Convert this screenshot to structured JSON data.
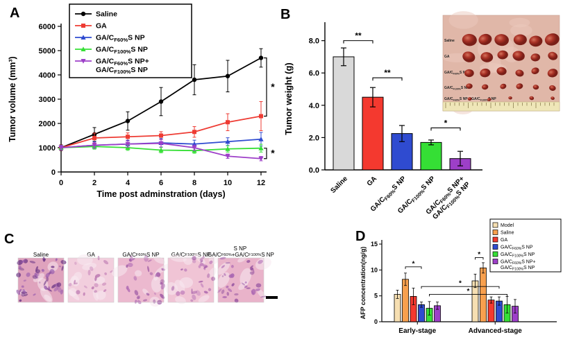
{
  "figure": {
    "panel_labels": {
      "A": "A",
      "B": "B",
      "C": "C",
      "D": "D"
    }
  },
  "chart_data": [
    {
      "panel": "A",
      "type": "line",
      "xlabel": "Time post adminstration (days)",
      "ylabel": "Tumor volume (mm³)",
      "x": [
        0,
        2,
        4,
        6,
        8,
        10,
        12
      ],
      "ylim": [
        0,
        6000
      ],
      "yticks": [
        0,
        1000,
        2000,
        3000,
        4000,
        5000,
        6000
      ],
      "legend_position": "upper-left",
      "series": [
        {
          "name": "Saline",
          "color": "#000000",
          "marker": "circle",
          "values": [
            1000,
            1550,
            2100,
            2900,
            3800,
            3950,
            4700
          ],
          "errors": [
            120,
            280,
            380,
            580,
            620,
            650,
            380
          ]
        },
        {
          "name": "GA",
          "color": "#ee3b33",
          "marker": "square",
          "values": [
            1000,
            1400,
            1450,
            1500,
            1650,
            2050,
            2300
          ],
          "errors": [
            110,
            200,
            160,
            160,
            220,
            350,
            600
          ]
        },
        {
          "name": "GA/C~F60%~S NP",
          "color": "#2f4bd0",
          "marker": "triangle",
          "values": [
            1000,
            1100,
            1150,
            1200,
            1150,
            1250,
            1350
          ],
          "errors": [
            100,
            150,
            160,
            180,
            160,
            160,
            280
          ]
        },
        {
          "name": "GA/C~F100%~S NP",
          "color": "#35df35",
          "marker": "triangle",
          "values": [
            1000,
            1050,
            1000,
            900,
            880,
            950,
            980
          ],
          "errors": [
            90,
            110,
            110,
            110,
            110,
            130,
            160
          ]
        },
        {
          "name": "GA/C~F60%~S NP+\nGA/C~F100%~S NP",
          "color": "#9d3fc8",
          "marker": "triangle-down",
          "values": [
            1000,
            1100,
            1150,
            1180,
            1000,
            650,
            550
          ],
          "errors": [
            90,
            110,
            130,
            150,
            110,
            90,
            90
          ]
        }
      ],
      "sig": [
        {
          "a": 0,
          "b": 1,
          "label": "*"
        },
        {
          "a": 3,
          "b": 4,
          "label": "*"
        }
      ]
    },
    {
      "panel": "B",
      "type": "bar",
      "ylabel": "Tumor weight (g)",
      "categories": [
        "Saline",
        "GA",
        "GA/C~F60%~S NP",
        "GA/C~F100%~S NP",
        "GA/C~F60%~S NP+\nGA/C~F100%~S NP"
      ],
      "values": [
        7.0,
        4.5,
        2.25,
        1.7,
        0.7
      ],
      "errors": [
        0.55,
        0.6,
        0.5,
        0.15,
        0.45
      ],
      "colors": [
        "#d9d9d9",
        "#f4392f",
        "#2f4bd0",
        "#35df35",
        "#9d3fc8"
      ],
      "ylim": [
        0,
        8.8
      ],
      "yticks": [
        0,
        2,
        4,
        6,
        8
      ],
      "ytick_labels": [
        "0.0",
        "2.0",
        "4.0",
        "6.0",
        "8.0"
      ],
      "sig": [
        {
          "a": 0,
          "b": 1,
          "y": 8.0,
          "label": "**"
        },
        {
          "a": 1,
          "b": 2,
          "y": 5.7,
          "label": "**"
        },
        {
          "a": 3,
          "b": 4,
          "y": 2.6,
          "label": "*"
        }
      ]
    },
    {
      "panel": "D",
      "type": "grouped-bar",
      "ylabel": "AFP concentration(ng/g)",
      "categories": [
        "Early-stage",
        "Advanced-stage"
      ],
      "ylim": [
        0,
        15
      ],
      "yticks": [
        0,
        5,
        10,
        15
      ],
      "legend_position": "upper-right",
      "series": [
        {
          "name": "Model",
          "color": "#f6dfb2",
          "values": [
            5.3,
            7.9
          ],
          "errors": [
            0.8,
            1.3
          ]
        },
        {
          "name": "Saline",
          "color": "#f8a04e",
          "values": [
            8.2,
            10.4
          ],
          "errors": [
            1.2,
            1.0
          ]
        },
        {
          "name": "GA",
          "color": "#f4392f",
          "values": [
            4.9,
            4.2
          ],
          "errors": [
            1.6,
            0.6
          ]
        },
        {
          "name": "GA/C~F60%~S NP",
          "color": "#2f4bd0",
          "values": [
            3.3,
            4.0
          ],
          "errors": [
            0.5,
            0.8
          ]
        },
        {
          "name": "GA/C~F100%~S NP",
          "color": "#35df35",
          "values": [
            2.6,
            3.3
          ],
          "errors": [
            1.3,
            1.6
          ]
        },
        {
          "name": "GA/C~F60%~S NP+\nGA/C~F100%~S NP",
          "color": "#9d3fc8",
          "values": [
            3.1,
            3.0
          ],
          "errors": [
            0.7,
            1.3
          ]
        }
      ],
      "sig": [
        {
          "g1": 0,
          "s1": 1,
          "g2": 0,
          "s2": 3,
          "y": 10.6,
          "label": "*"
        },
        {
          "g1": 1,
          "s1": 0,
          "g2": 1,
          "s2": 1,
          "y": 12.4,
          "label": "*"
        },
        {
          "g1": 0,
          "s1": 3,
          "g2": 1,
          "s2": 3,
          "y": 6.8,
          "label": "*"
        },
        {
          "g1": 0,
          "s1": 4,
          "g2": 1,
          "s2": 4,
          "y": 5.3,
          "label": "*"
        }
      ]
    }
  ],
  "panelC": {
    "labels": [
      "Saline",
      "GA",
      "GA/C~F60%~S NP",
      "GA/C~F100%~S NP",
      "GA/C~F60%~S NP\n+GA/C~F100%~S NP"
    ]
  },
  "insetB": {
    "row_labels": [
      "Saline",
      "GA",
      "GA/C~F60%~S NP",
      "GA/C~F100%~S NP",
      "GA/C~F60%~S NP + GA/C~F100%~S NP"
    ]
  }
}
